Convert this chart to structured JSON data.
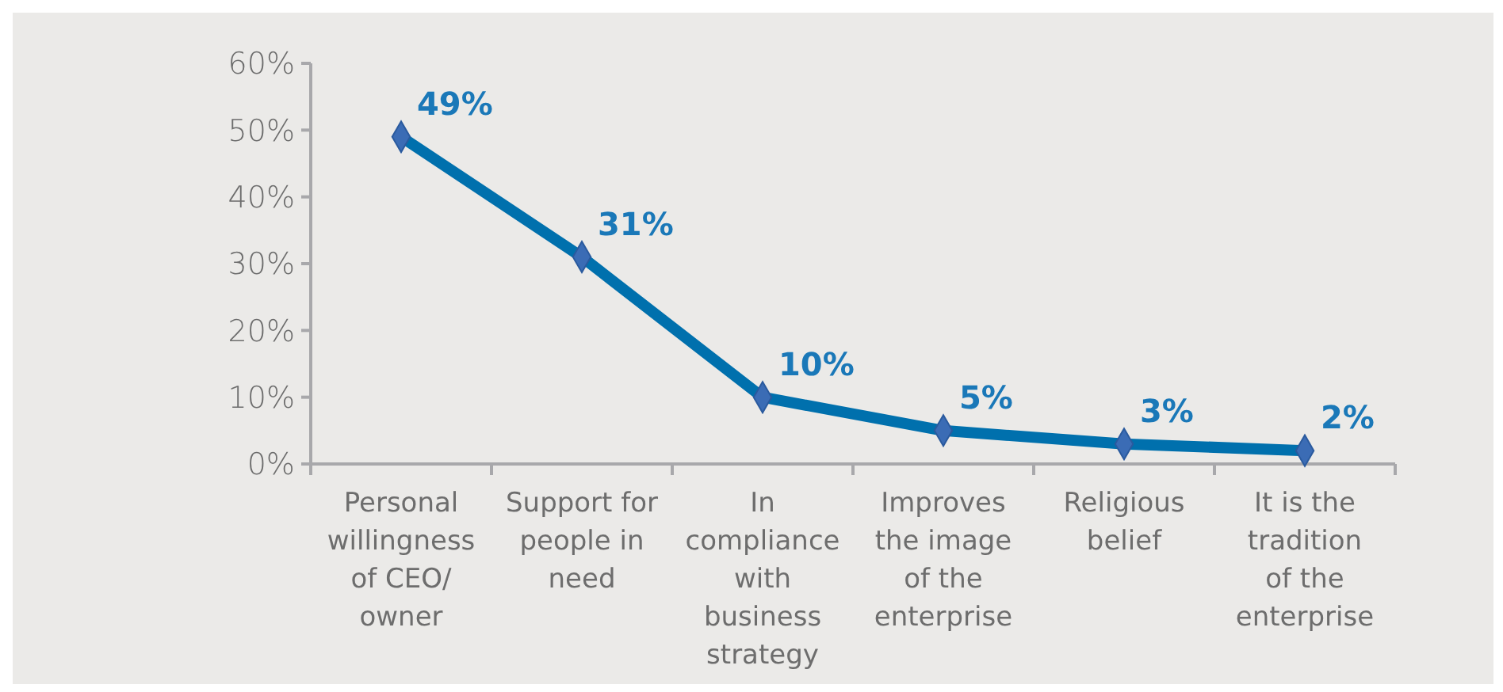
{
  "chart_data": {
    "type": "line",
    "categories": [
      "Personal willingness of CEO/ owner",
      "Support for people in need",
      "In compliance with business strategy",
      "Improves the image of the enterprise",
      "Religious belief",
      "It is the tradition of the enterprise"
    ],
    "series": [
      {
        "color": "#0070ad",
        "values": [
          49,
          31,
          10,
          5,
          3,
          2
        ],
        "value_labels": [
          "49%",
          "31%",
          "10%",
          "5%",
          "3%",
          "2%"
        ]
      }
    ],
    "ylim": [
      0,
      60
    ],
    "yticks": [
      {
        "value": 0,
        "label": "0%"
      },
      {
        "value": 10,
        "label": "10%"
      },
      {
        "value": 20,
        "label": "20%"
      },
      {
        "value": 30,
        "label": "30%"
      },
      {
        "value": 40,
        "label": "40%"
      },
      {
        "value": 50,
        "label": "50%"
      },
      {
        "value": 60,
        "label": "60%"
      }
    ],
    "marker": "diamond"
  }
}
